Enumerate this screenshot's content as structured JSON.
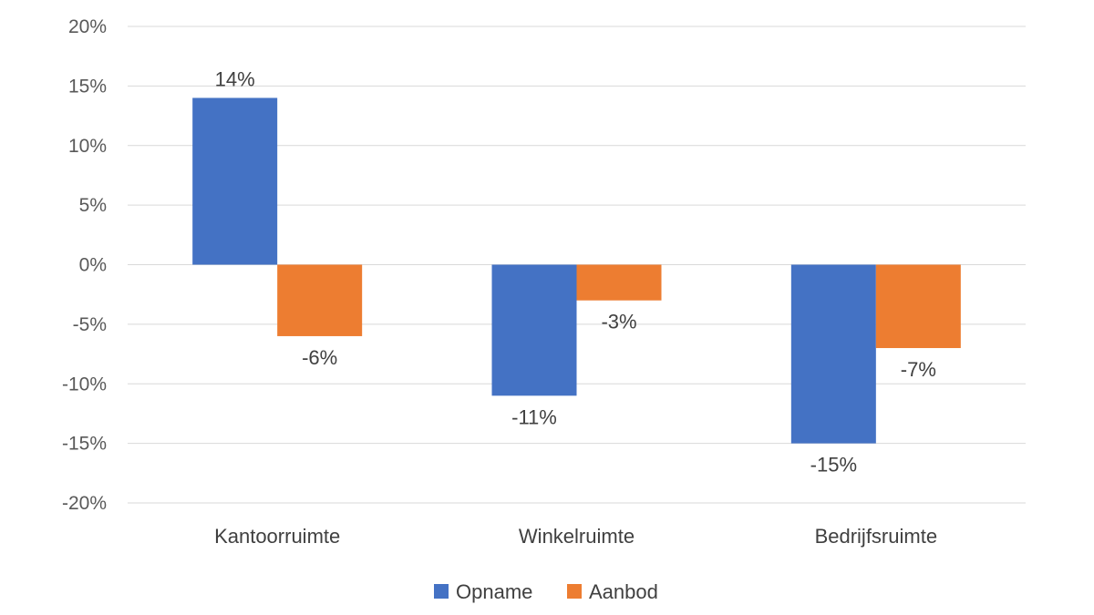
{
  "chart_data": {
    "type": "bar",
    "categories": [
      "Kantoorruimte",
      "Winkelruimte",
      "Bedrijfsruimte"
    ],
    "series": [
      {
        "name": "Opname",
        "values": [
          14,
          -11,
          -15
        ],
        "labels": [
          "14%",
          "-11%",
          "-15%"
        ],
        "color": "#4472C4"
      },
      {
        "name": "Aanbod",
        "values": [
          -6,
          -3,
          -7
        ],
        "labels": [
          "-6%",
          "-3%",
          "-7%"
        ],
        "color": "#ED7D31"
      }
    ],
    "ylim": [
      -20,
      20
    ],
    "yticks": [
      {
        "value": 20,
        "label": "20%"
      },
      {
        "value": 15,
        "label": "15%"
      },
      {
        "value": 10,
        "label": "10%"
      },
      {
        "value": 5,
        "label": "5%"
      },
      {
        "value": 0,
        "label": "0%"
      },
      {
        "value": -5,
        "label": "-5%"
      },
      {
        "value": -10,
        "label": "-10%"
      },
      {
        "value": -15,
        "label": "-15%"
      },
      {
        "value": -20,
        "label": "-20%"
      }
    ],
    "grid": true,
    "legend": "bottom",
    "title": "",
    "xlabel": "",
    "ylabel": ""
  }
}
